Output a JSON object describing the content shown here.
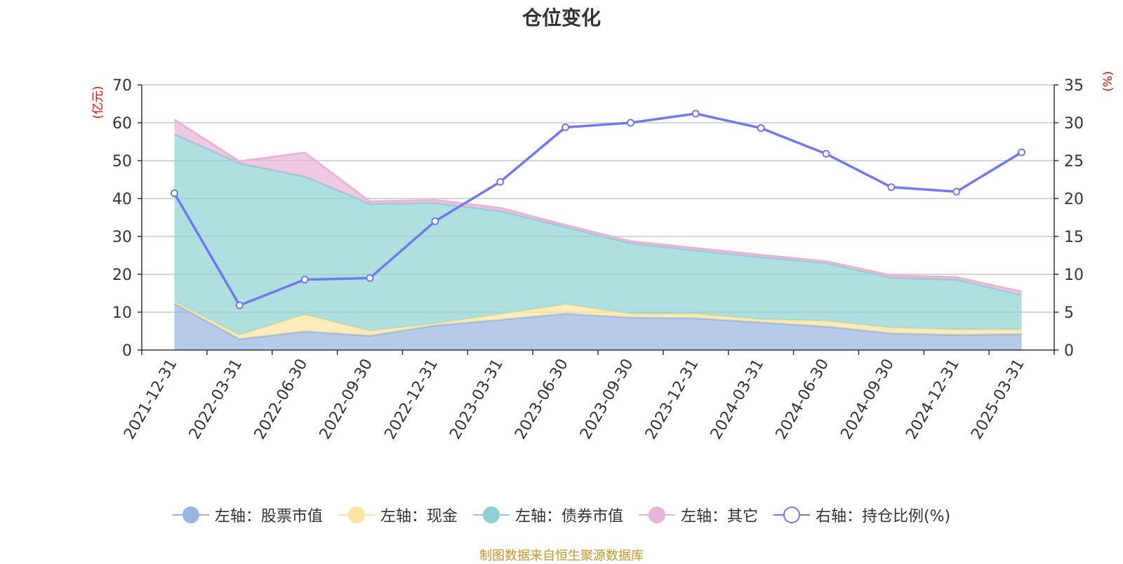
{
  "chart_data": {
    "type": "area",
    "title": "仓位变化",
    "categories": [
      "2021-12-31",
      "2022-03-31",
      "2022-06-30",
      "2022-09-30",
      "2022-12-31",
      "2023-03-31",
      "2023-06-30",
      "2023-09-30",
      "2023-12-31",
      "2024-03-31",
      "2024-06-30",
      "2024-09-30",
      "2024-12-31",
      "2025-03-31"
    ],
    "left_axis": {
      "unit": "(亿元)",
      "min": 0,
      "max": 70,
      "ticks": [
        0,
        10,
        20,
        30,
        40,
        50,
        60,
        70
      ]
    },
    "right_axis": {
      "unit": "(%)",
      "min": 0,
      "max": 35,
      "ticks": [
        0,
        5,
        10,
        15,
        20,
        25,
        30,
        35
      ]
    },
    "series": [
      {
        "name": "左轴：股票市值",
        "axis": "left",
        "kind": "stacked-area",
        "color": "#98b4e0",
        "values": [
          12.3,
          2.9,
          4.9,
          3.8,
          6.5,
          8.0,
          9.6,
          8.6,
          8.4,
          7.3,
          6.2,
          4.4,
          4.0,
          4.2
        ]
      },
      {
        "name": "左轴：现金",
        "axis": "left",
        "kind": "stacked-area",
        "color": "#f8e4a0",
        "values": [
          0.5,
          1.1,
          4.5,
          1.3,
          0.5,
          1.5,
          2.5,
          1.0,
          1.2,
          0.8,
          1.5,
          1.5,
          1.4,
          1.2
        ]
      },
      {
        "name": "左轴：债券市值",
        "axis": "left",
        "kind": "stacked-area",
        "color": "#8ed1d2",
        "values": [
          44.2,
          45.3,
          36.4,
          33.5,
          31.8,
          27.2,
          20.4,
          18.6,
          16.7,
          16.4,
          15.3,
          13.2,
          13.2,
          9.1
        ]
      },
      {
        "name": "左轴：其它",
        "axis": "left",
        "kind": "stacked-area",
        "color": "#e8b4d8",
        "values": [
          3.8,
          0.5,
          6.3,
          0.6,
          0.8,
          0.8,
          0.5,
          0.5,
          0.6,
          0.6,
          0.4,
          0.6,
          0.6,
          0.9
        ]
      },
      {
        "name": "右轴：持仓比例(%)",
        "axis": "right",
        "kind": "line",
        "color": "#7179f0",
        "values": [
          20.7,
          5.9,
          9.3,
          9.5,
          17.0,
          22.2,
          29.4,
          30.0,
          31.2,
          29.3,
          25.9,
          21.5,
          20.9,
          26.1
        ]
      }
    ]
  },
  "legend": [
    {
      "label": "左轴：股票市值",
      "color": "#98b4e0",
      "style": "filled"
    },
    {
      "label": "左轴：现金",
      "color": "#f8e4a0",
      "style": "filled"
    },
    {
      "label": "左轴：债券市值",
      "color": "#8ed1d2",
      "style": "filled"
    },
    {
      "label": "左轴：其它",
      "color": "#e8b4d8",
      "style": "filled"
    },
    {
      "label": "右轴：持仓比例(%)",
      "color": "#7179f0",
      "style": "hollow"
    }
  ],
  "source_note": "制图数据来自恒生聚源数据库"
}
